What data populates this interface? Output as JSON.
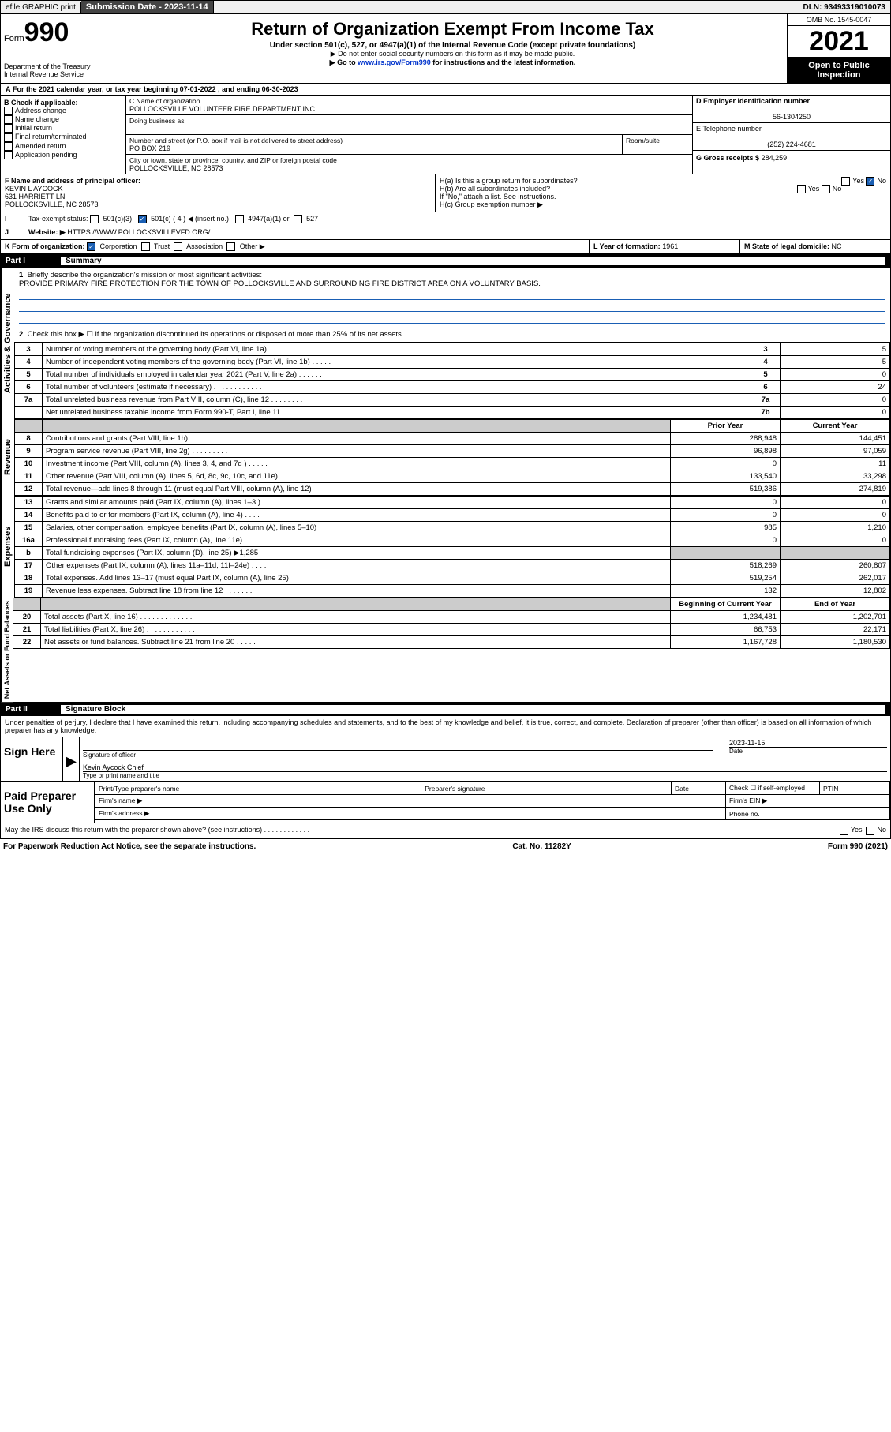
{
  "topbar": {
    "efile": "efile GRAPHIC print",
    "submission_label": "Submission Date - 2023-11-14",
    "dln": "DLN: 93493319010073"
  },
  "header": {
    "form_word": "Form",
    "form_number": "990",
    "dept": "Department of the Treasury",
    "irs": "Internal Revenue Service",
    "title": "Return of Organization Exempt From Income Tax",
    "subtitle": "Under section 501(c), 527, or 4947(a)(1) of the Internal Revenue Code (except private foundations)",
    "note1": "▶ Do not enter social security numbers on this form as it may be made public.",
    "note2_pre": "▶ Go to ",
    "note2_link": "www.irs.gov/Form990",
    "note2_post": " for instructions and the latest information.",
    "omb": "OMB No. 1545-0047",
    "year": "2021",
    "inspection": "Open to Public Inspection"
  },
  "line_a": "For the 2021 calendar year, or tax year beginning 07-01-2022   , and ending 06-30-2023",
  "box_b": {
    "label": "B Check if applicable:",
    "items": [
      "Address change",
      "Name change",
      "Initial return",
      "Final return/terminated",
      "Amended return",
      "Application pending"
    ]
  },
  "box_c": {
    "c_label": "C Name of organization",
    "org_name": "POLLOCKSVILLE VOLUNTEER FIRE DEPARTMENT INC",
    "dba_label": "Doing business as",
    "addr_label": "Number and street (or P.O. box if mail is not delivered to street address)",
    "room_label": "Room/suite",
    "addr": "PO BOX 219",
    "city_label": "City or town, state or province, country, and ZIP or foreign postal code",
    "city": "POLLOCKSVILLE, NC  28573"
  },
  "box_d": {
    "label": "D Employer identification number",
    "value": "56-1304250"
  },
  "box_e": {
    "label": "E Telephone number",
    "value": "(252) 224-4681"
  },
  "box_g": {
    "label": "G Gross receipts $",
    "value": "284,259"
  },
  "box_f": {
    "label": "F  Name and address of principal officer:",
    "name": "KEVIN L AYCOCK",
    "addr1": "631 HARRIETT LN",
    "addr2": "POLLOCKSVILLE, NC  28573"
  },
  "box_h": {
    "ha": "H(a)  Is this a group return for subordinates?",
    "hb": "H(b)  Are all subordinates included?",
    "hb_note": "If \"No,\" attach a list. See instructions.",
    "hc": "H(c)  Group exemption number ▶",
    "yes": "Yes",
    "no": "No"
  },
  "line_i": {
    "label": "Tax-exempt status:",
    "opts": [
      "501(c)(3)",
      "501(c) ( 4 ) ◀ (insert no.)",
      "4947(a)(1) or",
      "527"
    ]
  },
  "line_j": {
    "label": "Website: ▶",
    "value": "HTTPS://WWW.POLLOCKSVILLEVFD.ORG/"
  },
  "line_k": {
    "label": "K Form of organization:",
    "opts": [
      "Corporation",
      "Trust",
      "Association",
      "Other ▶"
    ]
  },
  "line_l": {
    "label": "L Year of formation:",
    "value": "1961"
  },
  "line_m": {
    "label": "M State of legal domicile:",
    "value": "NC"
  },
  "part1": {
    "label": "Part I",
    "title": "Summary"
  },
  "summary": {
    "q1_label": "Briefly describe the organization's mission or most significant activities:",
    "q1_text": "PROVIDE PRIMARY FIRE PROTECTION FOR THE TOWN OF POLLOCKSVILLE AND SURROUNDING FIRE DISTRICT AREA ON A VOLUNTARY BASIS.",
    "q2": "Check this box ▶ ☐  if the organization discontinued its operations or disposed of more than 25% of its net assets.",
    "rows_top": [
      {
        "n": "3",
        "d": "Number of voting members of the governing body (Part VI, line 1a)   .   .   .   .   .   .   .   .",
        "b": "3",
        "v": "5"
      },
      {
        "n": "4",
        "d": "Number of independent voting members of the governing body (Part VI, line 1b)   .   .   .   .   .",
        "b": "4",
        "v": "5"
      },
      {
        "n": "5",
        "d": "Total number of individuals employed in calendar year 2021 (Part V, line 2a)   .   .   .   .   .   .",
        "b": "5",
        "v": "0"
      },
      {
        "n": "6",
        "d": "Total number of volunteers (estimate if necessary)   .   .   .   .   .   .   .   .   .   .   .   .",
        "b": "6",
        "v": "24"
      },
      {
        "n": "7a",
        "d": "Total unrelated business revenue from Part VIII, column (C), line 12   .   .   .   .   .   .   .   .",
        "b": "7a",
        "v": "0"
      },
      {
        "n": "",
        "d": "Net unrelated business taxable income from Form 990-T, Part I, line 11   .   .   .   .   .   .   .",
        "b": "7b",
        "v": "0"
      }
    ],
    "col_headers": {
      "prior": "Prior Year",
      "current": "Current Year"
    },
    "rows_rev": [
      {
        "n": "8",
        "d": "Contributions and grants (Part VIII, line 1h)   .   .   .   .   .   .   .   .   .",
        "p": "288,948",
        "c": "144,451"
      },
      {
        "n": "9",
        "d": "Program service revenue (Part VIII, line 2g)   .   .   .   .   .   .   .   .   .",
        "p": "96,898",
        "c": "97,059"
      },
      {
        "n": "10",
        "d": "Investment income (Part VIII, column (A), lines 3, 4, and 7d )   .   .   .   .   .",
        "p": "0",
        "c": "11"
      },
      {
        "n": "11",
        "d": "Other revenue (Part VIII, column (A), lines 5, 6d, 8c, 9c, 10c, and 11e)   .   .   .",
        "p": "133,540",
        "c": "33,298"
      },
      {
        "n": "12",
        "d": "Total revenue—add lines 8 through 11 (must equal Part VIII, column (A), line 12)",
        "p": "519,386",
        "c": "274,819"
      }
    ],
    "rows_exp": [
      {
        "n": "13",
        "d": "Grants and similar amounts paid (Part IX, column (A), lines 1–3 )   .   .   .   .",
        "p": "0",
        "c": "0"
      },
      {
        "n": "14",
        "d": "Benefits paid to or for members (Part IX, column (A), line 4)   .   .   .   .",
        "p": "0",
        "c": "0"
      },
      {
        "n": "15",
        "d": "Salaries, other compensation, employee benefits (Part IX, column (A), lines 5–10)",
        "p": "985",
        "c": "1,210"
      },
      {
        "n": "16a",
        "d": "Professional fundraising fees (Part IX, column (A), line 11e)   .   .   .   .   .",
        "p": "0",
        "c": "0"
      },
      {
        "n": "b",
        "d": "Total fundraising expenses (Part IX, column (D), line 25) ▶1,285",
        "p": "",
        "c": "",
        "shade": true
      },
      {
        "n": "17",
        "d": "Other expenses (Part IX, column (A), lines 11a–11d, 11f–24e)   .   .   .   .",
        "p": "518,269",
        "c": "260,807"
      },
      {
        "n": "18",
        "d": "Total expenses. Add lines 13–17 (must equal Part IX, column (A), line 25)",
        "p": "519,254",
        "c": "262,017"
      },
      {
        "n": "19",
        "d": "Revenue less expenses. Subtract line 18 from line 12   .   .   .   .   .   .   .",
        "p": "132",
        "c": "12,802"
      }
    ],
    "net_headers": {
      "begin": "Beginning of Current Year",
      "end": "End of Year"
    },
    "rows_net": [
      {
        "n": "20",
        "d": "Total assets (Part X, line 16)   .   .   .   .   .   .   .   .   .   .   .   .   .",
        "p": "1,234,481",
        "c": "1,202,701"
      },
      {
        "n": "21",
        "d": "Total liabilities (Part X, line 26)   .   .   .   .   .   .   .   .   .   .   .   .",
        "p": "66,753",
        "c": "22,171"
      },
      {
        "n": "22",
        "d": "Net assets or fund balances. Subtract line 21 from line 20   .   .   .   .   .",
        "p": "1,167,728",
        "c": "1,180,530"
      }
    ]
  },
  "side_labels": {
    "gov": "Activities & Governance",
    "rev": "Revenue",
    "exp": "Expenses",
    "net": "Net Assets or Fund Balances"
  },
  "part2": {
    "label": "Part II",
    "title": "Signature Block"
  },
  "perjury": "Under penalties of perjury, I declare that I have examined this return, including accompanying schedules and statements, and to the best of my knowledge and belief, it is true, correct, and complete. Declaration of preparer (other than officer) is based on all information of which preparer has any knowledge.",
  "sign": {
    "here": "Sign Here",
    "sig_label": "Signature of officer",
    "date_label": "Date",
    "date_value": "2023-11-15",
    "name_value": "Kevin Aycock  Chief",
    "name_label": "Type or print name and title"
  },
  "paid": {
    "title": "Paid Preparer Use Only",
    "h1": "Print/Type preparer's name",
    "h2": "Preparer's signature",
    "h3": "Date",
    "h4_pre": "Check ☐ if self-employed",
    "h5": "PTIN",
    "firm_name": "Firm's name    ▶",
    "firm_ein": "Firm's EIN ▶",
    "firm_addr": "Firm's address ▶",
    "phone": "Phone no."
  },
  "discuss": "May the IRS discuss this return with the preparer shown above? (see instructions)   .   .   .   .   .   .   .   .   .   .   .   .",
  "footer": {
    "left": "For Paperwork Reduction Act Notice, see the separate instructions.",
    "mid": "Cat. No. 11282Y",
    "right": "Form 990 (2021)"
  },
  "colors": {
    "link": "#0033cc",
    "checked": "#1a5fb4"
  }
}
